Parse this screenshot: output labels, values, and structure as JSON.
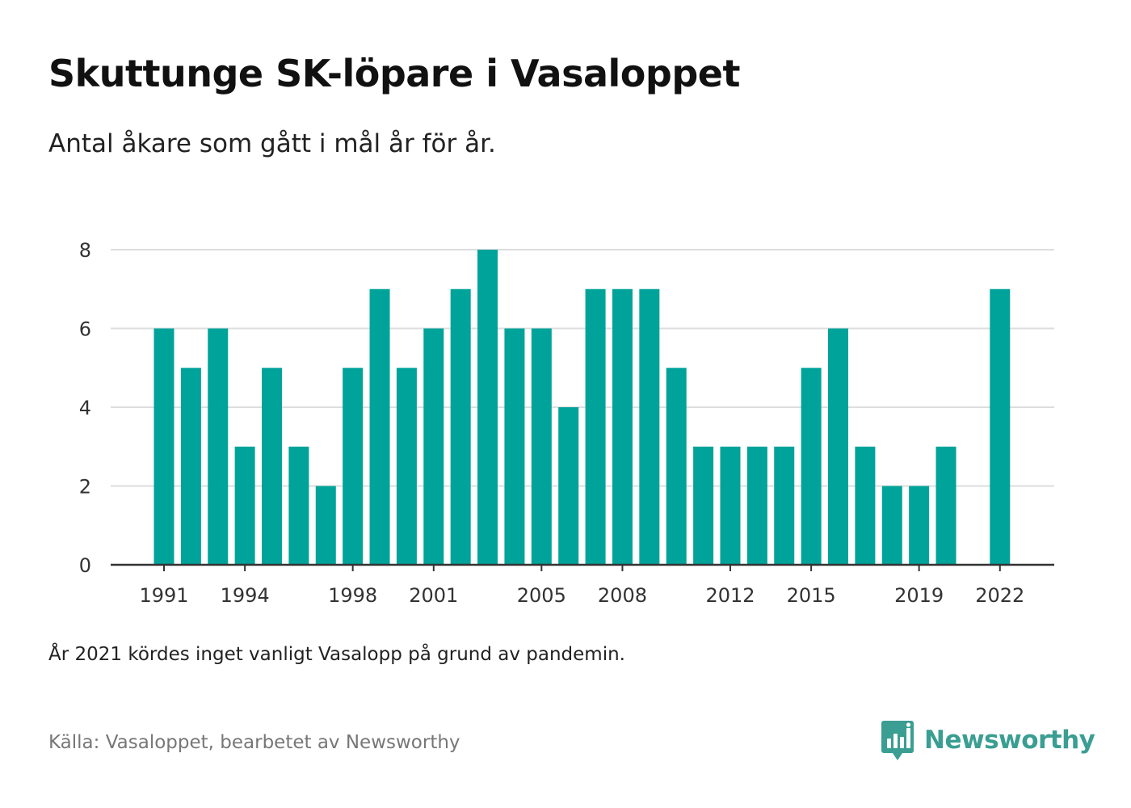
{
  "title": "Skuttunge SK-löpare i Vasaloppet",
  "subtitle": "Antal åkare som gått i mål år för år.",
  "note": "År 2021 kördes inget vanligt Vasalopp på grund av pandemin.",
  "source": "Källa: Vasaloppet, bearbetet av Newsworthy",
  "brand": {
    "name": "Newsworthy",
    "icon": "newsworthy-logo-icon",
    "color": "#3a9e92"
  },
  "colors": {
    "bar": "#00a39a",
    "grid": "#dddddd",
    "axis": "#333333"
  },
  "chart_data": {
    "type": "bar",
    "title": "Skuttunge SK-löpare i Vasaloppet",
    "subtitle": "Antal åkare som gått i mål år för år.",
    "xlabel": "",
    "ylabel": "",
    "categories": [
      1991,
      1992,
      1993,
      1994,
      1995,
      1996,
      1997,
      1998,
      1999,
      2000,
      2001,
      2002,
      2003,
      2004,
      2005,
      2006,
      2007,
      2008,
      2009,
      2010,
      2011,
      2012,
      2013,
      2014,
      2015,
      2016,
      2017,
      2018,
      2019,
      2020,
      2021,
      2022
    ],
    "values": [
      6,
      5,
      6,
      3,
      5,
      3,
      2,
      5,
      7,
      5,
      6,
      7,
      8,
      6,
      6,
      4,
      7,
      7,
      7,
      5,
      3,
      3,
      3,
      3,
      5,
      6,
      3,
      2,
      2,
      3,
      null,
      7
    ],
    "ylim": [
      0,
      8
    ],
    "yticks": [
      0,
      2,
      4,
      6,
      8
    ],
    "xticks": [
      1991,
      1994,
      1998,
      2001,
      2005,
      2008,
      2012,
      2015,
      2019,
      2022
    ],
    "grid": true,
    "legend": "none"
  }
}
